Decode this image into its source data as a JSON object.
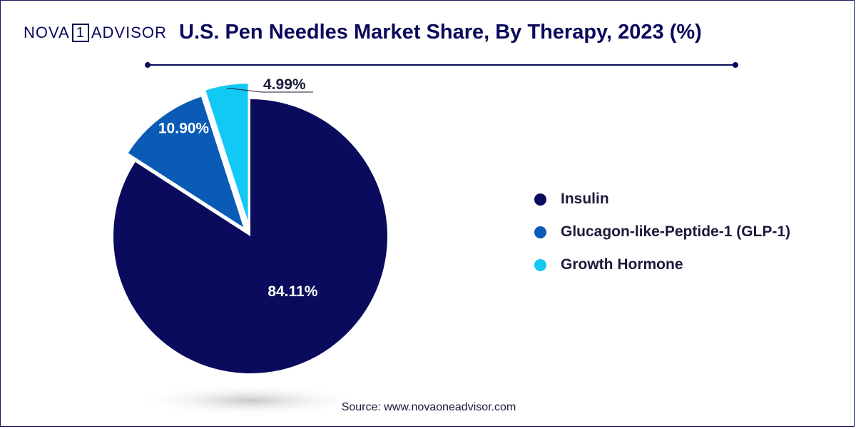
{
  "logo": {
    "part1": "NOVA",
    "part2": "1",
    "part3": "ADVISOR"
  },
  "title": "U.S. Pen Needles Market Share, By Therapy, 2023 (%)",
  "source": "Source: www.novaoneadvisor.com",
  "chart_data": {
    "type": "pie",
    "title": "U.S. Pen Needles Market Share, By Therapy, 2023 (%)",
    "slices": [
      {
        "label": "Insulin",
        "value": 84.11,
        "display": "84.11%",
        "color": "#0b0b5e"
      },
      {
        "label": "Glucagon-like-Peptide-1 (GLP-1)",
        "value": 10.9,
        "display": "10.90%",
        "color": "#0a5bb5"
      },
      {
        "label": "Growth Hormone",
        "value": 4.99,
        "display": "4.99%",
        "color": "#12c8f5"
      }
    ],
    "legend_position": "right"
  }
}
